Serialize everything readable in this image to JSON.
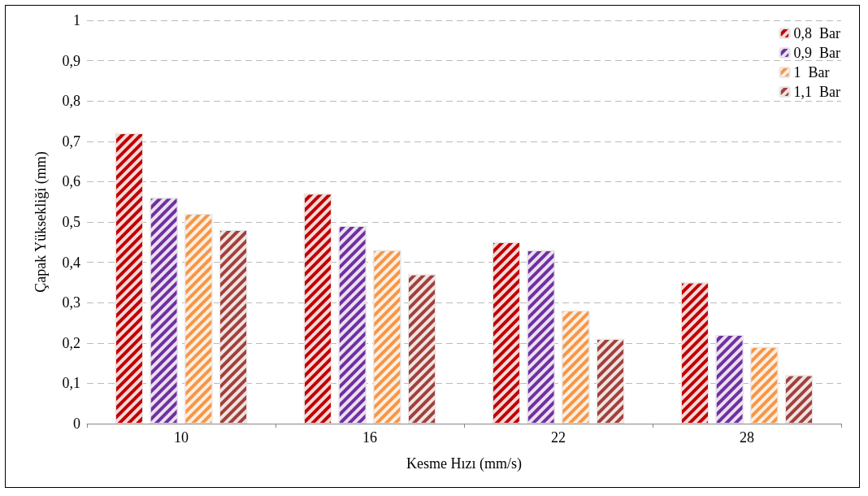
{
  "chart_data": {
    "type": "bar",
    "xlabel": "Kesme Hızı (mm/s)",
    "ylabel": "Çapak Yüksekliği (mm)",
    "categories": [
      "10",
      "16",
      "22",
      "28"
    ],
    "series": [
      {
        "name": "0,8  Bar",
        "color": "#c00000",
        "values": [
          0.72,
          0.57,
          0.45,
          0.35
        ]
      },
      {
        "name": "0,9  Bar",
        "color": "#7030a0",
        "values": [
          0.56,
          0.49,
          0.43,
          0.22
        ]
      },
      {
        "name": "1  Bar",
        "color": "#f79646",
        "values": [
          0.52,
          0.43,
          0.28,
          0.19
        ]
      },
      {
        "name": "1,1  Bar",
        "color": "#a0413c",
        "values": [
          0.48,
          0.37,
          0.21,
          0.12
        ]
      }
    ],
    "ylim": [
      0,
      1
    ],
    "yticks": [
      0,
      {
        "value": 0.1,
        "label": "0,1"
      },
      {
        "value": 0.2,
        "label": "0,2"
      },
      {
        "value": 0.3,
        "label": "0,3"
      },
      {
        "value": 0.4,
        "label": "0,4"
      },
      {
        "value": 0.5,
        "label": "0,5"
      },
      {
        "value": 0.6,
        "label": "0,6"
      },
      {
        "value": 0.7,
        "label": "0,7"
      },
      {
        "value": 0.8,
        "label": "0,8"
      },
      {
        "value": 0.9,
        "label": "0,9"
      },
      1
    ],
    "grid": "y",
    "legend": "top right"
  }
}
